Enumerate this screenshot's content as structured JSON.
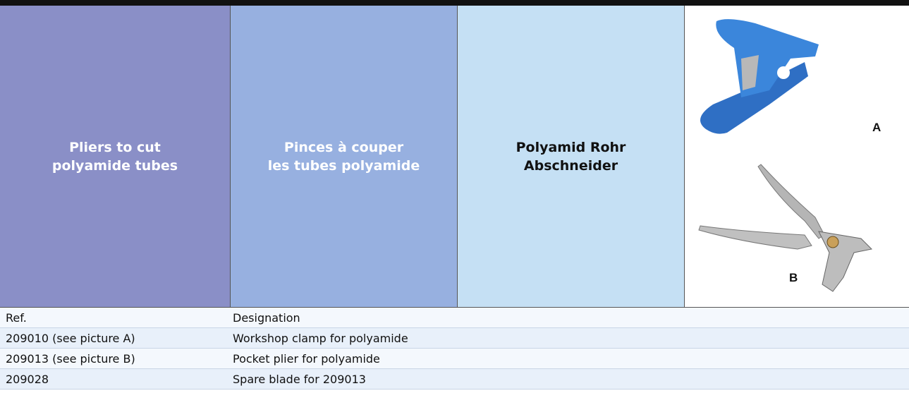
{
  "header": {
    "cells": [
      {
        "lines": [
          "Pliers to cut",
          "polyamide tubes"
        ]
      },
      {
        "lines": [
          "Pinces à couper",
          "les tubes polyamide"
        ]
      },
      {
        "lines": [
          "Polyamid Rohr",
          "Abschneider"
        ]
      }
    ],
    "pictures": [
      {
        "label": "A"
      },
      {
        "label": "B"
      }
    ]
  },
  "table": {
    "header": [
      "Ref.",
      "Designation"
    ],
    "rows": [
      [
        "209010 (see picture A)",
        "Workshop clamp for polyamide"
      ],
      [
        "209013 (see picture B)",
        "Pocket plier for polyamide"
      ],
      [
        "209028",
        "Spare blade for 209013"
      ]
    ]
  }
}
